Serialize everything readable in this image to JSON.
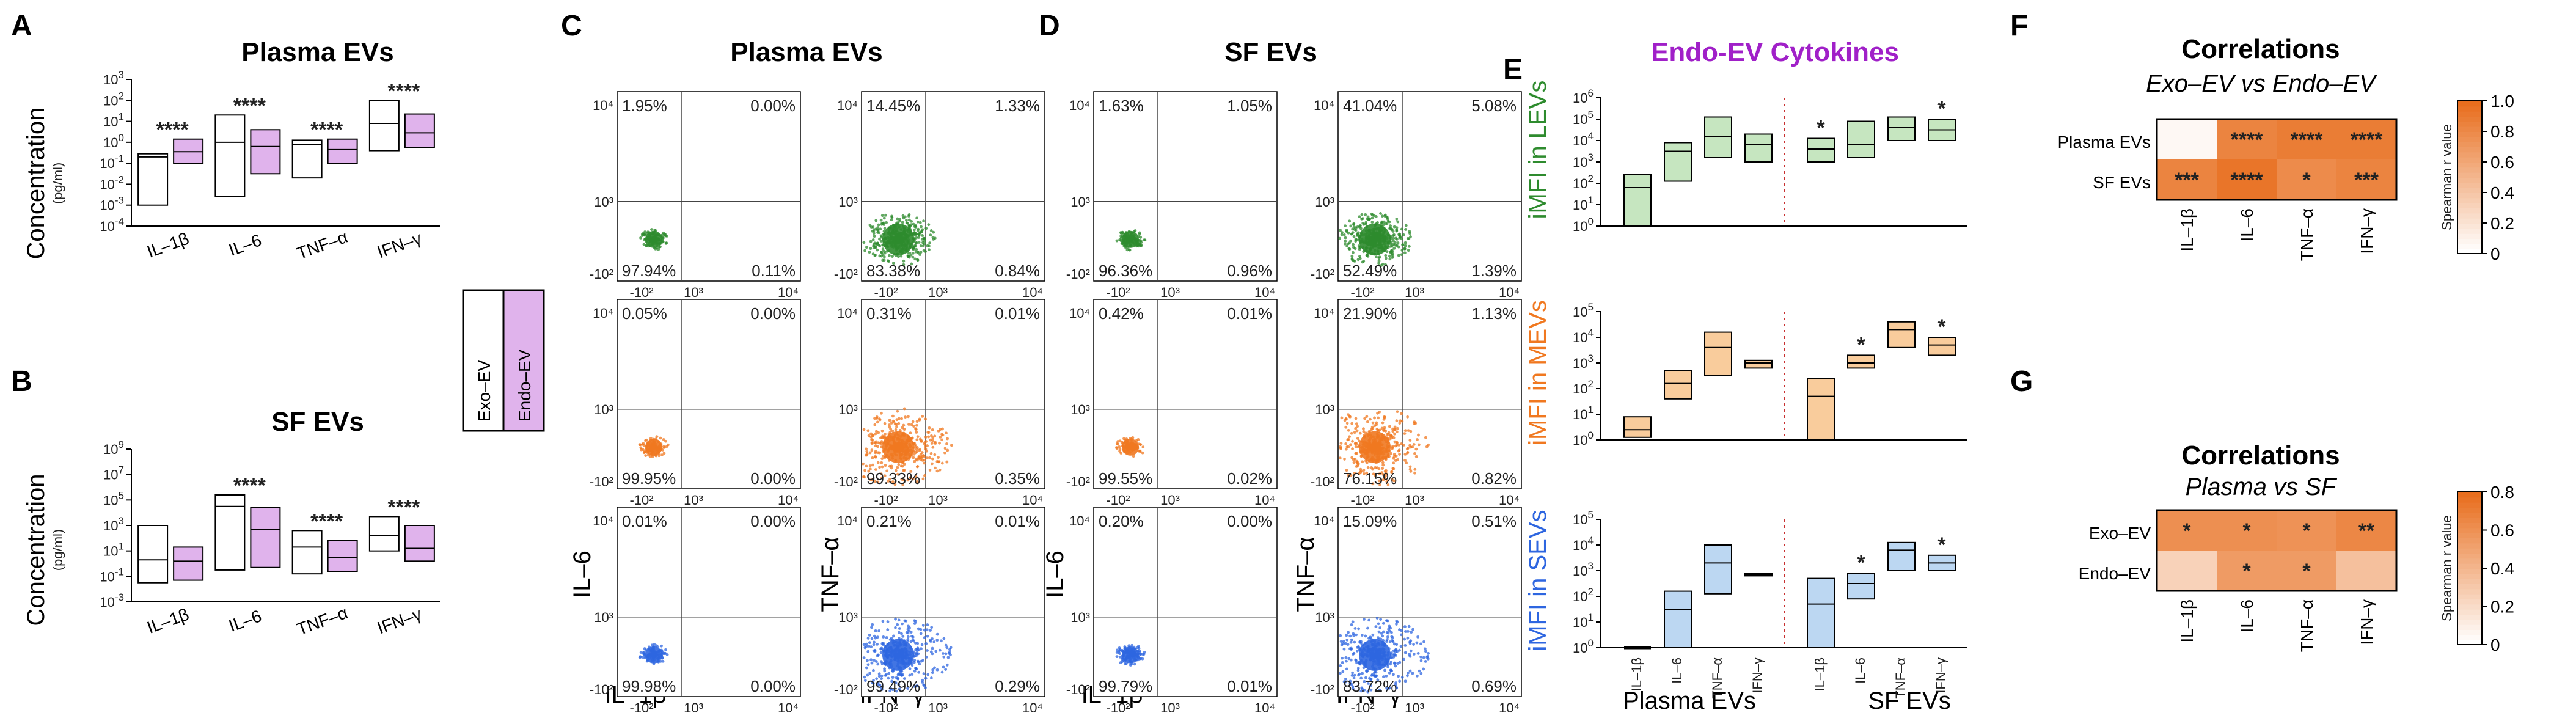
{
  "panels": {
    "A": {
      "label": "A",
      "title": "Plasma EVs"
    },
    "B": {
      "label": "B",
      "title": "SF EVs"
    },
    "C": {
      "label": "C",
      "title": "Plasma EVs"
    },
    "D": {
      "label": "D",
      "title": "SF EVs"
    },
    "E": {
      "label": "E",
      "title": "Endo-EV Cytokines"
    },
    "F": {
      "label": "F",
      "title": "Correlations",
      "subtitle": "Exo–EV vs Endo–EV"
    },
    "G": {
      "label": "G",
      "title": "Correlations",
      "subtitle": "Plasma vs SF"
    }
  },
  "common": {
    "conc_label": "Concentration",
    "conc_unit": "(pg/ml)",
    "legend_exo": "Exo–EV",
    "legend_endo": "Endo–EV",
    "spearman": "Spearman r value",
    "ylab_levs": "iMFI in LEVs",
    "ylab_mevs": "iMFI in MEVs",
    "ylab_sevs": "iMFI in SEVs",
    "x_plasma": "Plasma EVs",
    "x_sf": "SF EVs",
    "flow_y1": "IL–6",
    "flow_x1": "IL–1β",
    "flow_y2": "TNF–α",
    "flow_x2": "IFN–γ"
  },
  "colors": {
    "exo_fill": "#ffffff",
    "endo_fill": "#e0b3ec",
    "green": "#2e8b2e",
    "orange": "#f07820",
    "blue": "#2e66e0",
    "green_box": "#c6e6c0",
    "orange_box": "#f9cc9c",
    "blue_box": "#bcd7f2",
    "title_purple": "#a020c8"
  },
  "chart_data": [
    {
      "id": "A",
      "type": "box",
      "title": "Plasma EVs",
      "ylabel": "Concentration (pg/ml)",
      "yscale": "log",
      "yticks": [
        "10^-4",
        "10^-3",
        "10^-2",
        "10^-1",
        "10^0",
        "10^1",
        "10^2",
        "10^3"
      ],
      "categories": [
        "IL–1β",
        "IL–6",
        "TNF–α",
        "IFN–γ"
      ],
      "series": [
        {
          "name": "Exo–EV",
          "boxes": [
            [
              -3.0,
              -0.55,
              -0.7
            ],
            [
              -2.6,
              1.3,
              0.0
            ],
            [
              -1.7,
              0.1,
              -0.1
            ],
            [
              -0.4,
              2.0,
              0.9
            ]
          ]
        },
        {
          "name": "Endo–EV",
          "boxes": [
            [
              -1.0,
              0.15,
              -0.45
            ],
            [
              -1.5,
              0.6,
              -0.2
            ],
            [
              -1.0,
              0.15,
              -0.35
            ],
            [
              -0.25,
              1.35,
              0.45
            ]
          ]
        }
      ],
      "annotations": [
        "****",
        "****",
        "****",
        "****"
      ]
    },
    {
      "id": "B",
      "type": "box",
      "title": "SF EVs",
      "ylabel": "Concentration (pg/ml)",
      "yscale": "log",
      "yticks": [
        "10^-3",
        "10^-1",
        "10^1",
        "10^3",
        "10^5",
        "10^7",
        "10^9"
      ],
      "categories": [
        "IL–1β",
        "IL–6",
        "TNF–α",
        "IFN–γ"
      ],
      "series": [
        {
          "name": "Exo–EV",
          "boxes": [
            [
              -1.5,
              3.0,
              0.3
            ],
            [
              -0.5,
              5.4,
              4.5
            ],
            [
              -0.8,
              2.6,
              1.3
            ],
            [
              1.0,
              3.7,
              2.2
            ]
          ]
        },
        {
          "name": "Endo–EV",
          "boxes": [
            [
              -1.3,
              1.3,
              0.2
            ],
            [
              -0.3,
              4.4,
              2.7
            ],
            [
              -0.6,
              1.8,
              0.5
            ],
            [
              0.2,
              3.0,
              1.2
            ]
          ]
        }
      ],
      "annotations": [
        "",
        "****",
        "****",
        "****"
      ]
    },
    {
      "id": "C",
      "type": "scatter-flow",
      "title": "Plasma EVs",
      "rows": [
        {
          "color": "green",
          "left": [
            "1.95%",
            "0.00%",
            "97.94%",
            "0.11%"
          ],
          "right": [
            "14.45%",
            "1.33%",
            "83.38%",
            "0.84%"
          ]
        },
        {
          "color": "orange",
          "left": [
            "0.05%",
            "0.00%",
            "99.95%",
            "0.00%"
          ],
          "right": [
            "0.31%",
            "0.01%",
            "99.33%",
            "0.35%"
          ]
        },
        {
          "color": "blue",
          "left": [
            "0.01%",
            "0.00%",
            "99.98%",
            "0.00%"
          ],
          "right": [
            "0.21%",
            "0.01%",
            "99.49%",
            "0.29%"
          ]
        }
      ]
    },
    {
      "id": "D",
      "type": "scatter-flow",
      "title": "SF EVs",
      "rows": [
        {
          "color": "green",
          "left": [
            "1.63%",
            "1.05%",
            "96.36%",
            "0.96%"
          ],
          "right": [
            "41.04%",
            "5.08%",
            "52.49%",
            "1.39%"
          ]
        },
        {
          "color": "orange",
          "left": [
            "0.42%",
            "0.01%",
            "99.55%",
            "0.02%"
          ],
          "right": [
            "21.90%",
            "1.13%",
            "76.15%",
            "0.82%"
          ]
        },
        {
          "color": "blue",
          "left": [
            "0.20%",
            "0.00%",
            "99.79%",
            "0.01%"
          ],
          "right": [
            "15.09%",
            "0.51%",
            "83.72%",
            "0.69%"
          ]
        }
      ]
    },
    {
      "id": "E",
      "type": "box",
      "title": "Endo-EV Cytokines",
      "yscale": "log",
      "categories": [
        "IL–1β",
        "IL–6",
        "TNF–α",
        "IFN–γ",
        "IL–1β",
        "IL–6",
        "TNF–α",
        "IFN–γ"
      ],
      "groups": [
        "Plasma EVs",
        "SF EVs"
      ],
      "rows": [
        {
          "name": "iMFI in LEVs",
          "yticks": [
            "10^0",
            "10^1",
            "10^2",
            "10^3",
            "10^4",
            "10^5",
            "10^6"
          ],
          "boxes": [
            [
              0,
              2.4,
              1.8
            ],
            [
              2.1,
              3.9,
              3.5
            ],
            [
              3.2,
              5.1,
              4.2
            ],
            [
              3.0,
              4.3,
              3.8
            ],
            [
              3.0,
              4.1,
              3.6
            ],
            [
              3.2,
              4.9,
              3.8
            ],
            [
              4.0,
              5.1,
              4.6
            ],
            [
              4.0,
              5.0,
              4.5
            ]
          ],
          "stars": [
            "",
            "",
            "",
            "",
            "*",
            "",
            "",
            "*"
          ]
        },
        {
          "name": "iMFI in MEVs",
          "yticks": [
            "10^0",
            "10^1",
            "10^2",
            "10^3",
            "10^4",
            "10^5"
          ],
          "boxes": [
            [
              0.1,
              0.9,
              0.4
            ],
            [
              1.6,
              2.7,
              2.2
            ],
            [
              2.5,
              4.2,
              3.6
            ],
            [
              2.8,
              3.1,
              3.0
            ],
            [
              0,
              2.4,
              1.7
            ],
            [
              2.8,
              3.3,
              3.0
            ],
            [
              3.6,
              4.6,
              4.3
            ],
            [
              3.3,
              4.0,
              3.7
            ]
          ],
          "stars": [
            "",
            "",
            "",
            "",
            "",
            "*",
            "",
            "*"
          ]
        },
        {
          "name": "iMFI in SEVs",
          "yticks": [
            "10^0",
            "10^1",
            "10^2",
            "10^3",
            "10^4",
            "10^5"
          ],
          "boxes": [
            [
              0,
              0,
              0
            ],
            [
              0,
              2.2,
              1.5
            ],
            [
              2.1,
              4.0,
              3.3
            ],
            [
              2.8,
              2.9,
              2.85
            ],
            [
              0,
              2.7,
              1.7
            ],
            [
              1.9,
              2.9,
              2.5
            ],
            [
              3.0,
              4.1,
              3.8
            ],
            [
              3.0,
              3.6,
              3.3
            ]
          ],
          "stars": [
            "",
            "",
            "",
            "",
            "",
            "*",
            "",
            "*"
          ]
        }
      ]
    },
    {
      "id": "F",
      "type": "heatmap",
      "title": "Correlations",
      "subtitle": "Exo–EV vs Endo–EV",
      "rows": [
        "Plasma EVs",
        "SF EVs"
      ],
      "cols": [
        "IL–1β",
        "IL–6",
        "TNF–α",
        "IFN–γ"
      ],
      "values": [
        [
          0.05,
          0.85,
          0.9,
          0.9
        ],
        [
          0.85,
          0.95,
          0.8,
          0.85
        ]
      ],
      "labels": [
        [
          "",
          "****",
          "****",
          "****"
        ],
        [
          "***",
          "****",
          "*",
          "***"
        ]
      ],
      "colorbar": {
        "min": 0,
        "max": 1.0,
        "ticks": [
          "0",
          "0.2",
          "0.4",
          "0.6",
          "0.8",
          "1.0"
        ],
        "label": "Spearman r value"
      }
    },
    {
      "id": "G",
      "type": "heatmap",
      "title": "Correlations",
      "subtitle": "Plasma vs SF",
      "rows": [
        "Exo–EV",
        "Endo–EV"
      ],
      "cols": [
        "IL–1β",
        "IL–6",
        "TNF–α",
        "IFN–γ"
      ],
      "values": [
        [
          0.62,
          0.62,
          0.6,
          0.66
        ],
        [
          0.25,
          0.55,
          0.55,
          0.35
        ]
      ],
      "labels": [
        [
          "*",
          "*",
          "*",
          "**"
        ],
        [
          "",
          "*",
          "*",
          ""
        ]
      ],
      "colorbar": {
        "min": 0,
        "max": 0.8,
        "ticks": [
          "0",
          "0.2",
          "0.4",
          "0.6",
          "0.8"
        ],
        "label": "Spearman r value"
      }
    }
  ]
}
